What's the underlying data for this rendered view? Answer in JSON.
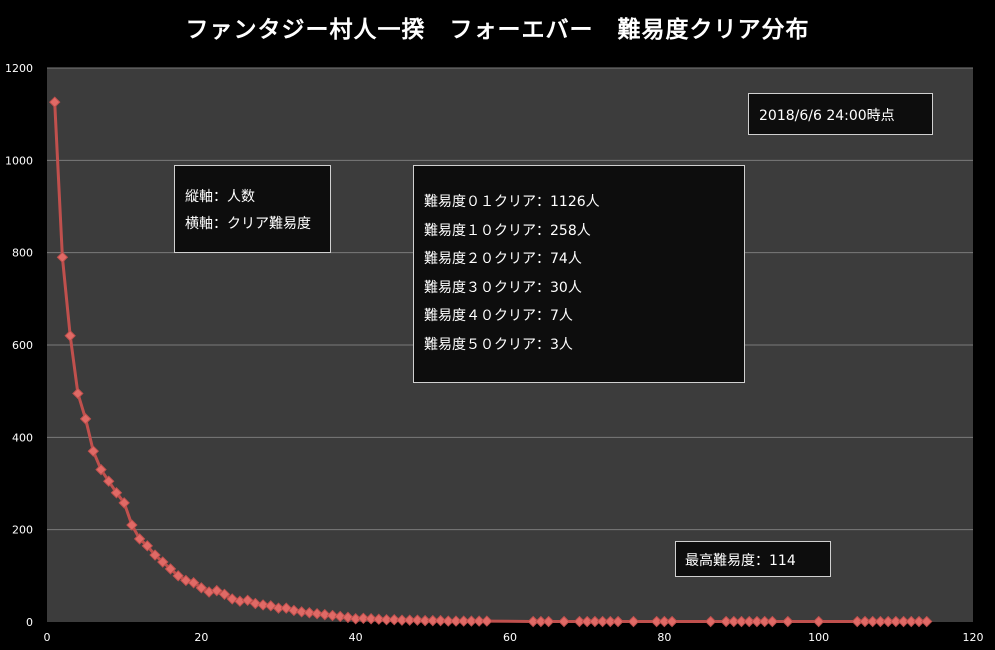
{
  "title": "ファンタジー村人一揆　フォーエバー　難易度クリア分布",
  "timestamp_note": "2018/6/6 24:00時点",
  "axis_note": [
    "縦軸：人数",
    "横軸：クリア難易度"
  ],
  "clear_summary": [
    "難易度０１クリア：1126人",
    "難易度１０クリア：258人",
    "難易度２０クリア：74人",
    "難易度３０クリア：30人",
    "難易度４０クリア：7人",
    "難易度５０クリア：3人"
  ],
  "max_difficulty_note": "最高難易度：114",
  "colors": {
    "plot_bg": "#3c3c3c",
    "series": "#c0504d",
    "marker": "#e06a66",
    "grid": "#7a7a7a",
    "text": "#ffffff"
  },
  "chart_data": {
    "type": "line",
    "title": "ファンタジー村人一揆　フォーエバー　難易度クリア分布",
    "xlabel": "",
    "ylabel": "",
    "xlim": [
      0,
      120
    ],
    "ylim": [
      0,
      1200
    ],
    "xticks": [
      0,
      20,
      40,
      60,
      80,
      100,
      120
    ],
    "yticks": [
      0,
      200,
      400,
      600,
      800,
      1000,
      1200
    ],
    "grid": true,
    "legend": "none",
    "series": [
      {
        "x": [
          1,
          2,
          3,
          4,
          5,
          6,
          7,
          8,
          9,
          10,
          11,
          12,
          13,
          14,
          15,
          16,
          17,
          18,
          19,
          20,
          21,
          22,
          23,
          24,
          25,
          26,
          27,
          28,
          29,
          30,
          31,
          32,
          33,
          34,
          35,
          36,
          37,
          38,
          39,
          40,
          41,
          42,
          43,
          44,
          45,
          46,
          47,
          48,
          49,
          50,
          51,
          52,
          53,
          54,
          55,
          56,
          57,
          63,
          64,
          65,
          67,
          69,
          70,
          71,
          72,
          73,
          74,
          76,
          79,
          80,
          81,
          86,
          88,
          89,
          90,
          91,
          92,
          93,
          94,
          96,
          100,
          105,
          106,
          107,
          108,
          109,
          110,
          111,
          112,
          113,
          114
        ],
        "values": [
          1126,
          790,
          620,
          495,
          440,
          370,
          330,
          305,
          280,
          258,
          210,
          180,
          165,
          145,
          130,
          115,
          100,
          90,
          85,
          74,
          65,
          68,
          60,
          50,
          45,
          47,
          40,
          37,
          35,
          30,
          30,
          25,
          22,
          20,
          18,
          16,
          14,
          12,
          10,
          7,
          8,
          7,
          6,
          5,
          5,
          4,
          4,
          4,
          3,
          3,
          3,
          2,
          2,
          2,
          2,
          2,
          2,
          1,
          1,
          1,
          1,
          1,
          1,
          1,
          1,
          1,
          1,
          1,
          1,
          1,
          1,
          1,
          1,
          1,
          1,
          1,
          1,
          1,
          1,
          1,
          1,
          1,
          1,
          1,
          1,
          1,
          1,
          1,
          1,
          1,
          1
        ]
      }
    ]
  }
}
